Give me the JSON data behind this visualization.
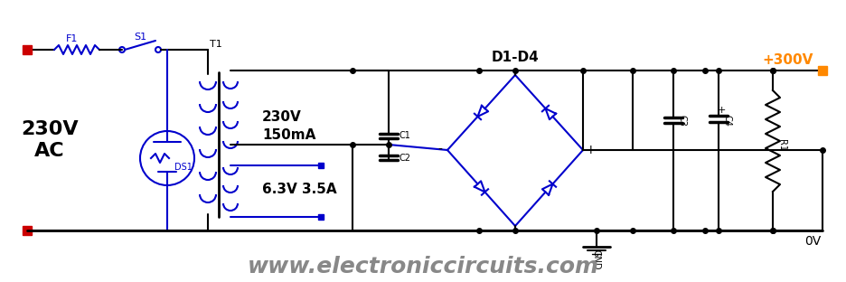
{
  "bg_color": "#ffffff",
  "line_color_black": "#000000",
  "line_color_blue": "#0000cc",
  "line_color_red": "#cc0000",
  "line_color_orange": "#ff8800",
  "line_color_gray": "#888888",
  "title": "www.electroniccircuits.com",
  "label_230V_AC": "230V\nAC",
  "label_230V": "230V",
  "label_150mA": "150mA",
  "label_63V": "6.3V 3.5A",
  "label_D1D4": "D1-D4",
  "label_300V": "+300V",
  "label_0V": "0V",
  "label_GND": "GND",
  "label_F1": "F1",
  "label_S1": "S1",
  "label_T1": "T1",
  "label_DS1": "DS1",
  "label_C1": "C1",
  "label_C2": "C2",
  "label_C3": "C3",
  "label_C4": "C4",
  "label_R1": "R1"
}
